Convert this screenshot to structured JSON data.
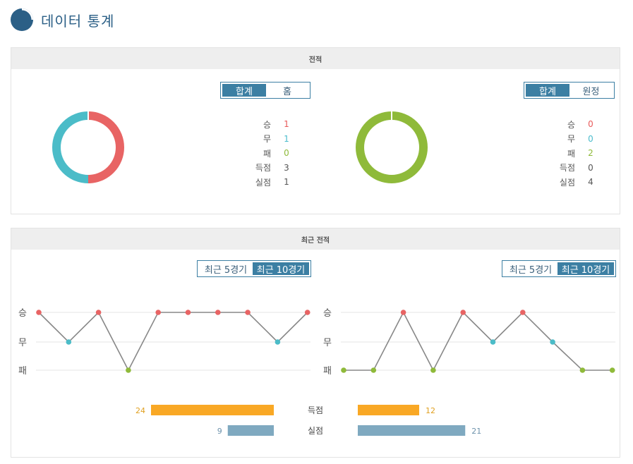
{
  "page": {
    "title": "데이터 통계"
  },
  "record": {
    "header": "전적",
    "left": {
      "tabs": [
        "합계",
        "홈"
      ],
      "active_tab": 0,
      "stats": [
        {
          "label": "승",
          "value": "1",
          "color": "#e85a5a"
        },
        {
          "label": "무",
          "value": "1",
          "color": "#4bbccc"
        },
        {
          "label": "패",
          "value": "0",
          "color": "#8fba3a"
        },
        {
          "label": "득점",
          "value": "3",
          "color": "#555555"
        },
        {
          "label": "실점",
          "value": "1",
          "color": "#555555"
        }
      ],
      "donut": [
        {
          "label": "승",
          "value": 1,
          "color": "#e86464"
        },
        {
          "label": "무",
          "value": 1,
          "color": "#4bbcc8"
        },
        {
          "label": "패",
          "value": 0,
          "color": "#8fba3a"
        }
      ]
    },
    "right": {
      "tabs": [
        "합계",
        "원정"
      ],
      "active_tab": 0,
      "stats": [
        {
          "label": "승",
          "value": "0",
          "color": "#e85a5a"
        },
        {
          "label": "무",
          "value": "0",
          "color": "#4bbccc"
        },
        {
          "label": "패",
          "value": "2",
          "color": "#8fba3a"
        },
        {
          "label": "득점",
          "value": "0",
          "color": "#555555"
        },
        {
          "label": "실점",
          "value": "4",
          "color": "#555555"
        }
      ],
      "donut": [
        {
          "label": "승",
          "value": 0,
          "color": "#e86464"
        },
        {
          "label": "무",
          "value": 0,
          "color": "#4bbcc8"
        },
        {
          "label": "패",
          "value": 2,
          "color": "#8fba3a"
        }
      ]
    }
  },
  "recent": {
    "header": "최근 전적",
    "tabs": [
      "최근 5경기",
      "최근 10경기"
    ],
    "active_tab": 1,
    "row_labels": [
      "승",
      "무",
      "패"
    ],
    "result_colors": {
      "승": "#e86464",
      "무": "#4bbcc8",
      "패": "#8fba3a"
    },
    "goals_for_label": "득점",
    "goals_against_label": "실점",
    "left": {
      "results": [
        "승",
        "무",
        "승",
        "패",
        "승",
        "승",
        "승",
        "승",
        "무",
        "승"
      ],
      "goals_for": 24,
      "goals_against": 9
    },
    "right": {
      "results": [
        "패",
        "패",
        "승",
        "패",
        "승",
        "무",
        "승",
        "무",
        "패",
        "패"
      ],
      "goals_for": 12,
      "goals_against": 21
    },
    "bar_colors": {
      "goals_for": "#f9a825",
      "goals_against": "#7fa9c0",
      "goals_for_text": "#e0a020",
      "goals_against_text": "#6e93ac"
    },
    "bar_max": 24
  }
}
